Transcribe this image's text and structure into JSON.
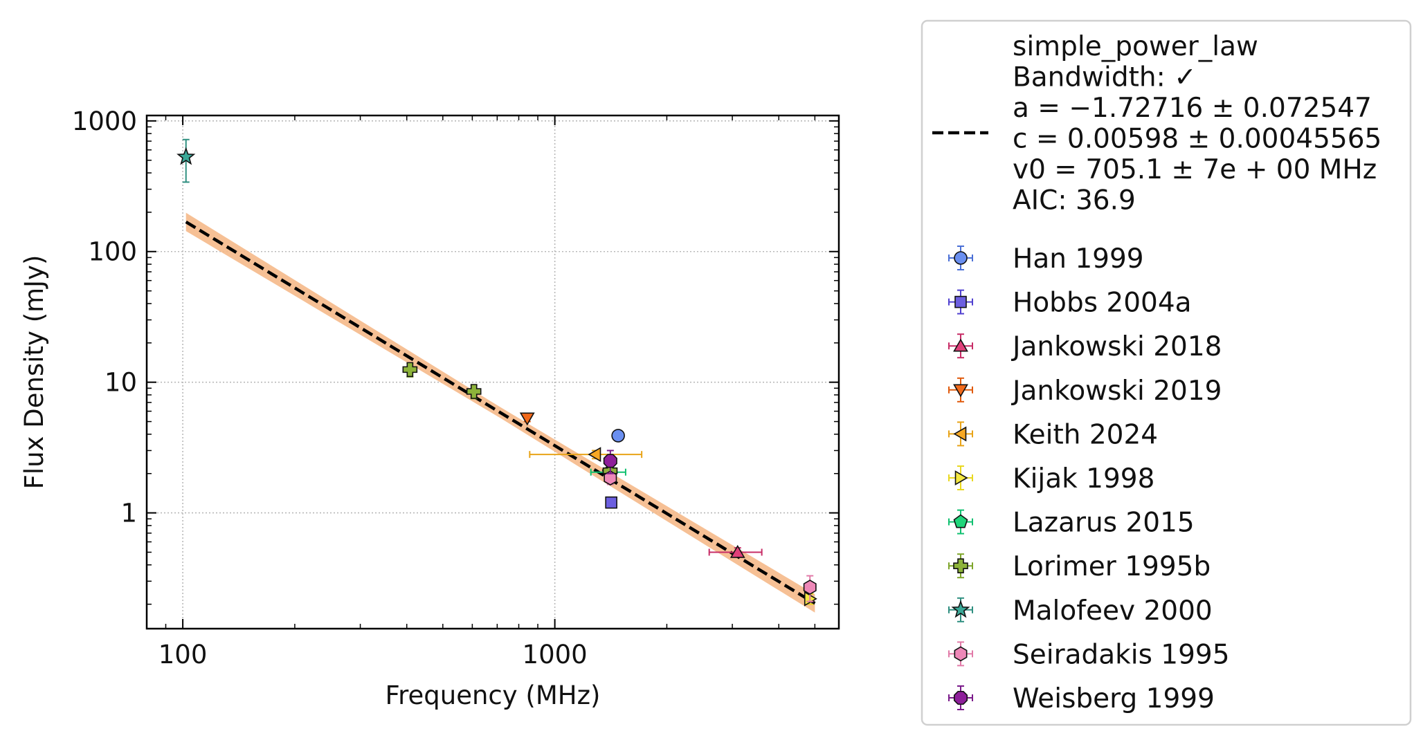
{
  "chart_data": {
    "type": "scatter",
    "xlabel": "Frequency (MHz)",
    "ylabel": "Flux Density (mJy)",
    "xscale": "log",
    "yscale": "log",
    "xlim": [
      80,
      5800
    ],
    "ylim": [
      0.13,
      1100
    ],
    "xticks": [
      {
        "value": 100,
        "label": "100"
      },
      {
        "value": 1000,
        "label": "1000"
      }
    ],
    "yticks": [
      {
        "value": 1,
        "label": "1"
      },
      {
        "value": 10,
        "label": "10"
      },
      {
        "value": 100,
        "label": "100"
      },
      {
        "value": 1000,
        "label": "1000"
      }
    ],
    "grid": true,
    "legend_position": "outside right",
    "fit": {
      "model": "simple_power_law",
      "label_lines": [
        "simple_power_law",
        "Bandwidth: ✓",
        "a = −1.72716 ± 0.072547",
        "c = 0.00598 ± 0.00045565",
        "v0 = 705.1 ± 7e + 00 MHz",
        "AIC: 36.9"
      ],
      "a": -1.72716,
      "c": 0.00598,
      "v0": 705.1,
      "x_range": [
        102,
        5000
      ],
      "band_relative_width": 0.1,
      "line_color": "#000000",
      "band_color": "#f5b98a"
    },
    "series": [
      {
        "name": "Han 1999",
        "marker": "circle",
        "color": "#6a8ff0",
        "edge": "#4a6fd6",
        "points": [
          {
            "x": 1480,
            "y": 3.9,
            "yerr": 0.3
          }
        ]
      },
      {
        "name": "Hobbs 2004a",
        "marker": "square",
        "color": "#6c5fe0",
        "edge": "#5040d0",
        "points": [
          {
            "x": 1418,
            "y": 1.2,
            "yerr": 0.1
          }
        ]
      },
      {
        "name": "Jankowski 2018",
        "marker": "triangle-up",
        "color": "#e0407a",
        "edge": "#c72c66",
        "points": [
          {
            "x": 3100,
            "y": 0.5,
            "yerr": 0.04,
            "xerr_lo": 500,
            "xerr_hi": 500
          }
        ]
      },
      {
        "name": "Jankowski 2019",
        "marker": "triangle-down",
        "color": "#f26a1b",
        "edge": "#e05a0c",
        "points": [
          {
            "x": 843,
            "y": 5.3,
            "yerr": 0.3
          }
        ]
      },
      {
        "name": "Keith 2024",
        "marker": "triangle-left",
        "color": "#f7a823",
        "edge": "#e8a317",
        "points": [
          {
            "x": 1284,
            "y": 2.8,
            "yerr": 0.2,
            "xerr_lo": 428,
            "xerr_hi": 428
          }
        ]
      },
      {
        "name": "Kijak 1998",
        "marker": "triangle-right",
        "color": "#f5e842",
        "edge": "#e9d820",
        "points": [
          {
            "x": 4850,
            "y": 0.22,
            "yerr": 0.02
          }
        ]
      },
      {
        "name": "Lazarus 2015",
        "marker": "pentagon",
        "color": "#1fd67a",
        "edge": "#10c070",
        "points": [
          {
            "x": 1400,
            "y": 2.05,
            "yerr": 0.15,
            "xerr_lo": 150,
            "xerr_hi": 150
          }
        ]
      },
      {
        "name": "Lorimer 1995b",
        "marker": "plus",
        "color": "#8db33a",
        "edge": "#7ea52a",
        "points": [
          {
            "x": 408,
            "y": 12.5,
            "yerr": 1.5
          },
          {
            "x": 606,
            "y": 8.5,
            "yerr": 1.0
          },
          {
            "x": 1408,
            "y": 2.1,
            "yerr": 0.2
          }
        ]
      },
      {
        "name": "Malofeev 2000",
        "marker": "star",
        "color": "#3aa897",
        "edge": "#2f8f80",
        "points": [
          {
            "x": 102,
            "y": 530,
            "yerr_lo": 190,
            "yerr_hi": 190
          }
        ]
      },
      {
        "name": "Seiradakis 1995",
        "marker": "hexagon",
        "color": "#ee88b8",
        "edge": "#e27aa8",
        "points": [
          {
            "x": 1410,
            "y": 1.85,
            "yerr": 0.2
          },
          {
            "x": 4850,
            "y": 0.27,
            "yerr": 0.06
          }
        ]
      },
      {
        "name": "Weisberg 1999",
        "marker": "octagon",
        "color": "#8e1f9a",
        "edge": "#7a1a8a",
        "points": [
          {
            "x": 1410,
            "y": 2.5,
            "yerr": 0.5
          }
        ]
      }
    ]
  }
}
